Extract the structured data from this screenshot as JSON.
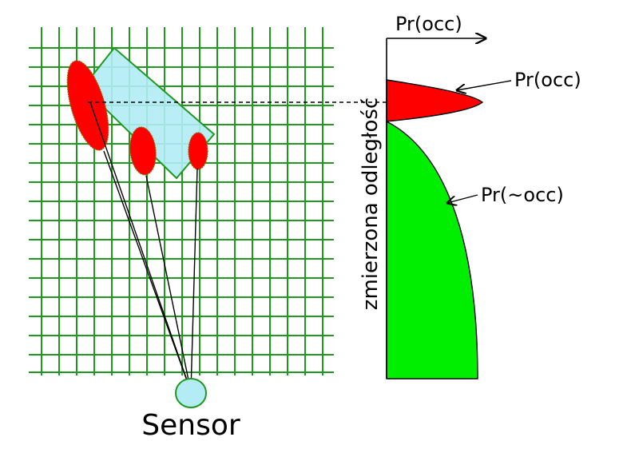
{
  "labels": {
    "axis_title": "Pr(occ)",
    "occ_curve": "Pr(occ)",
    "free_curve": "Pr(~occ)",
    "vertical_axis": "zmierzona odległość",
    "sensor": "Sensor"
  },
  "colors": {
    "grid": "#1e9a1e",
    "obstacle_fill": "#b3ecf5",
    "obstacle_stroke": "#1e9a1e",
    "beam_fill": "#ff0000",
    "occ_fill": "#ff0000",
    "free_fill": "#00ee00",
    "sensor_fill": "#b3ecf5",
    "sensor_stroke": "#1e9a1e"
  }
}
